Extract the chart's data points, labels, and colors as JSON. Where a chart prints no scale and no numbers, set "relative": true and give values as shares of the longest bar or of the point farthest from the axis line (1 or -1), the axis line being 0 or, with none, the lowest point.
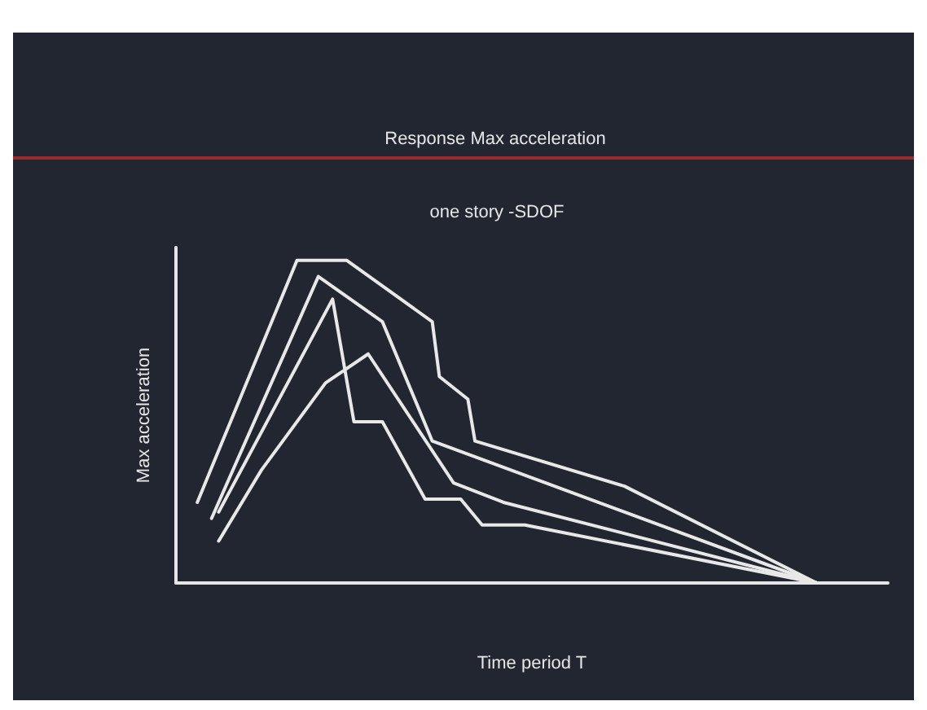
{
  "chart_data": {
    "type": "line",
    "title": "Response Max acceleration",
    "subtitle": "one story -SDOF",
    "xlabel": "Time period T",
    "ylabel": "Max acceleration",
    "relative": true,
    "marker": "none",
    "line_style": "solid",
    "categories": [
      null,
      null,
      null,
      null,
      null,
      null,
      null,
      null,
      null,
      null,
      null,
      null,
      null,
      null,
      null,
      null,
      null,
      null,
      null,
      null,
      null,
      null,
      null,
      null,
      null,
      null,
      null,
      null,
      null,
      null,
      null,
      null,
      null,
      null,
      null,
      null,
      null,
      null,
      null,
      null,
      null,
      null,
      null,
      null,
      null,
      null,
      null,
      null,
      null,
      null,
      null,
      null,
      null,
      null,
      null,
      null,
      null,
      null,
      null,
      null,
      null,
      null,
      null,
      null,
      null,
      null,
      null,
      null,
      null,
      null,
      null,
      null,
      null,
      null,
      null,
      null,
      null,
      null,
      null,
      null,
      null,
      null,
      null,
      null,
      null,
      null,
      null,
      null,
      null,
      null,
      null,
      null,
      null,
      null,
      null,
      null,
      null,
      null,
      null,
      null,
      null
    ],
    "series": [
      {
        "color": "#e8e8e8",
        "values": [
          null,
          null,
          null,
          0.25,
          null,
          null,
          null,
          null,
          null,
          null,
          null,
          null,
          null,
          null,
          null,
          null,
          null,
          1,
          null,
          null,
          null,
          null,
          null,
          null,
          1,
          null,
          null,
          null,
          null,
          null,
          null,
          null,
          null,
          null,
          null,
          null,
          0.81,
          0.64,
          null,
          null,
          null,
          0.57,
          0.44,
          null,
          null,
          null,
          null,
          null,
          null,
          null,
          null,
          null,
          null,
          null,
          null,
          null,
          null,
          null,
          null,
          null,
          null,
          null,
          null,
          0.3,
          null,
          null,
          null,
          null,
          null,
          null,
          null,
          null,
          null,
          null,
          null,
          null,
          null,
          null,
          null,
          null,
          null,
          null,
          null,
          null,
          null,
          null,
          null,
          null,
          null,
          null,
          0,
          null,
          null,
          null,
          null,
          null,
          null,
          null,
          null,
          null,
          null
        ]
      },
      {
        "color": "#e8e8e8",
        "values": [
          null,
          null,
          null,
          null,
          null,
          0.2,
          null,
          null,
          null,
          null,
          null,
          null,
          null,
          null,
          null,
          null,
          null,
          null,
          null,
          null,
          0.95,
          null,
          null,
          null,
          null,
          null,
          null,
          null,
          null,
          0.81,
          null,
          null,
          null,
          null,
          null,
          null,
          0.44,
          null,
          null,
          null,
          null,
          null,
          null,
          null,
          null,
          null,
          null,
          null,
          null,
          null,
          null,
          null,
          null,
          null,
          null,
          null,
          null,
          null,
          null,
          null,
          null,
          null,
          null,
          null,
          null,
          null,
          null,
          null,
          null,
          null,
          null,
          null,
          null,
          null,
          null,
          null,
          null,
          null,
          null,
          null,
          null,
          null,
          null,
          null,
          null,
          null,
          null,
          null,
          null,
          null,
          0,
          null,
          null,
          null,
          null,
          null,
          null,
          null,
          null,
          null,
          null
        ]
      },
      {
        "color": "#e8e8e8",
        "values": [
          null,
          null,
          null,
          null,
          null,
          null,
          0.22,
          null,
          null,
          null,
          null,
          null,
          null,
          null,
          null,
          null,
          null,
          null,
          null,
          null,
          null,
          null,
          0.88,
          null,
          null,
          0.5,
          null,
          null,
          null,
          0.5,
          null,
          null,
          null,
          null,
          null,
          0.26,
          null,
          null,
          null,
          null,
          0.26,
          null,
          null,
          0.18,
          null,
          null,
          null,
          null,
          null,
          0.18,
          null,
          null,
          null,
          null,
          null,
          null,
          null,
          null,
          null,
          null,
          null,
          null,
          null,
          null,
          null,
          null,
          null,
          null,
          null,
          null,
          null,
          null,
          null,
          null,
          null,
          null,
          null,
          null,
          null,
          null,
          null,
          null,
          null,
          null,
          null,
          null,
          null,
          null,
          null,
          null,
          0,
          null,
          null,
          null,
          null,
          null,
          null,
          null,
          null,
          null,
          null
        ]
      },
      {
        "color": "#e8e8e8",
        "values": [
          null,
          null,
          null,
          null,
          null,
          null,
          0.13,
          null,
          null,
          null,
          null,
          null,
          0.35,
          null,
          null,
          null,
          null,
          null,
          null,
          null,
          null,
          0.62,
          null,
          null,
          null,
          null,
          null,
          0.71,
          null,
          null,
          null,
          null,
          null,
          null,
          null,
          null,
          null,
          null,
          null,
          0.31,
          null,
          null,
          null,
          null,
          null,
          null,
          0.25,
          null,
          null,
          null,
          null,
          null,
          null,
          null,
          null,
          null,
          null,
          null,
          null,
          null,
          null,
          null,
          null,
          null,
          null,
          null,
          null,
          null,
          null,
          null,
          null,
          null,
          null,
          null,
          null,
          null,
          null,
          null,
          null,
          null,
          null,
          null,
          null,
          null,
          null,
          null,
          null,
          null,
          null,
          null,
          0,
          null,
          null,
          null,
          null,
          null,
          null,
          null,
          null,
          null,
          null
        ]
      }
    ]
  }
}
